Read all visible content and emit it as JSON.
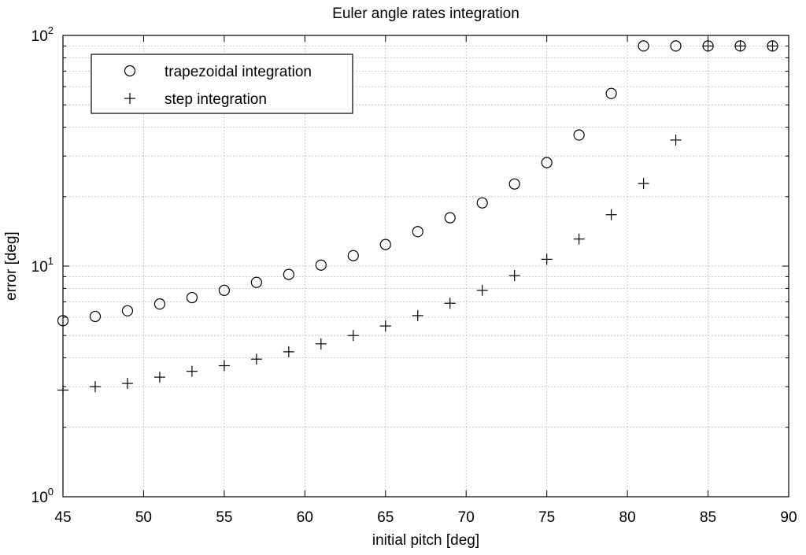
{
  "chart_data": {
    "type": "scatter",
    "title": "Euler angle rates integration",
    "xlabel": "initial pitch [deg]",
    "ylabel": "error [deg]",
    "xlim": [
      45,
      90
    ],
    "ylim": [
      1,
      100
    ],
    "yscale": "log",
    "grid": true,
    "legend_position": "top-left",
    "x_ticks": [
      "45",
      "50",
      "55",
      "60",
      "65",
      "70",
      "75",
      "80",
      "85",
      "90"
    ],
    "y_ticks": [
      {
        "value": 1,
        "base": "10",
        "exp": "0"
      },
      {
        "value": 10,
        "base": "10",
        "exp": "1"
      },
      {
        "value": 100,
        "base": "10",
        "exp": "2"
      }
    ],
    "series": [
      {
        "name": "trapezoidal integration",
        "marker": "circle",
        "color": "#000000",
        "x": [
          45,
          47,
          49,
          51,
          53,
          55,
          57,
          59,
          61,
          63,
          65,
          67,
          69,
          71,
          73,
          75,
          77,
          79,
          81,
          83,
          85,
          87,
          89
        ],
        "y": [
          5.8,
          6.05,
          6.4,
          6.85,
          7.3,
          7.85,
          8.5,
          9.2,
          10.1,
          11.1,
          12.4,
          14.1,
          16.2,
          18.8,
          22.7,
          28.1,
          37.0,
          56.0,
          90,
          90,
          90,
          90,
          90
        ]
      },
      {
        "name": "step integration",
        "marker": "plus",
        "color": "#000000",
        "x": [
          45,
          47,
          49,
          51,
          53,
          55,
          57,
          59,
          61,
          63,
          65,
          67,
          69,
          71,
          73,
          75,
          77,
          79,
          81,
          83,
          85,
          87,
          89
        ],
        "y": [
          2.9,
          3.0,
          3.1,
          3.3,
          3.5,
          3.7,
          3.95,
          4.25,
          4.6,
          5.0,
          5.5,
          6.1,
          6.9,
          7.85,
          9.1,
          10.7,
          13.1,
          16.7,
          22.8,
          35.2,
          90,
          90,
          90
        ]
      }
    ]
  }
}
